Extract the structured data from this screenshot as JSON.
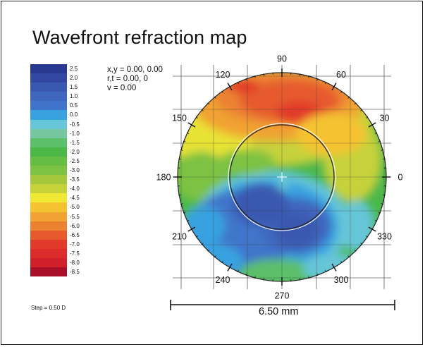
{
  "title": "Wavefront refraction map",
  "readout": {
    "line1": "x,y = 0.00, 0.00",
    "line2": "r,t = 0.00, 0",
    "line3": "v = 0.00"
  },
  "legend": {
    "step_label": "Step = 0.50 D",
    "items": [
      {
        "label": "2.5",
        "color": "#2a3990"
      },
      {
        "label": "2.0",
        "color": "#3248a0"
      },
      {
        "label": "1.5",
        "color": "#3a58b0"
      },
      {
        "label": "1.0",
        "color": "#3f66be"
      },
      {
        "label": "0.5",
        "color": "#3f74ca"
      },
      {
        "label": "0.0",
        "color": "#38a2e0"
      },
      {
        "label": "-0.5",
        "color": "#66c6d8"
      },
      {
        "label": "-1.0",
        "color": "#76c6a0"
      },
      {
        "label": "-1.5",
        "color": "#5cbf6a"
      },
      {
        "label": "-2.0",
        "color": "#4bb848"
      },
      {
        "label": "-2.5",
        "color": "#66bd44"
      },
      {
        "label": "-3.0",
        "color": "#7dc243"
      },
      {
        "label": "-3.5",
        "color": "#a4c83c"
      },
      {
        "label": "-4.0",
        "color": "#c6d23a"
      },
      {
        "label": "-4.5",
        "color": "#f0e832"
      },
      {
        "label": "-5.0",
        "color": "#f5c232"
      },
      {
        "label": "-5.5",
        "color": "#f0a332"
      },
      {
        "label": "-6.0",
        "color": "#eb8230"
      },
      {
        "label": "-6.5",
        "color": "#e65a2d"
      },
      {
        "label": "-7.0",
        "color": "#e23a2a"
      },
      {
        "label": "-7.5",
        "color": "#dd2a2a"
      },
      {
        "label": "-8.0",
        "color": "#d0202a"
      },
      {
        "label": "-8.5",
        "color": "#a8102a"
      }
    ]
  },
  "scale_bar_label": "6.50 mm",
  "chart_data": {
    "type": "heatmap",
    "title": "Wavefront refraction map",
    "unit": "D",
    "step": 0.5,
    "range": [
      -8.5,
      2.5
    ],
    "angle_labels": [
      "0",
      "30",
      "60",
      "90",
      "120",
      "150",
      "180",
      "210",
      "240",
      "270",
      "300",
      "330"
    ],
    "diameter_mm": 6.5,
    "grid": true
  }
}
